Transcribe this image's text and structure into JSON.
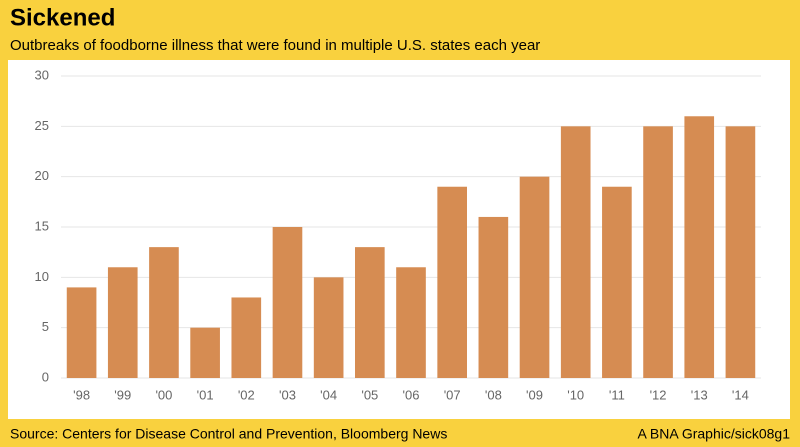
{
  "chart_data": {
    "type": "bar",
    "title": "Sickened",
    "subtitle": "Outbreaks of foodborne illness that were found in multiple U.S. states each year",
    "source": "Source: Centers for Disease Control and Prevention, Bloomberg News",
    "credit": "A BNA Graphic/sick08g1",
    "categories": [
      "'98",
      "'99",
      "'00",
      "'01",
      "'02",
      "'03",
      "'04",
      "'05",
      "'06",
      "'07",
      "'08",
      "'09",
      "'10",
      "'11",
      "'12",
      "'13",
      "'14"
    ],
    "values": [
      9,
      11,
      13,
      5,
      8,
      15,
      10,
      13,
      11,
      19,
      16,
      20,
      25,
      19,
      25,
      26,
      25
    ],
    "color": "#d68c52",
    "ylim": [
      0,
      30
    ],
    "yticks": [
      0,
      5,
      10,
      15,
      20,
      25,
      30
    ],
    "grid": true
  }
}
